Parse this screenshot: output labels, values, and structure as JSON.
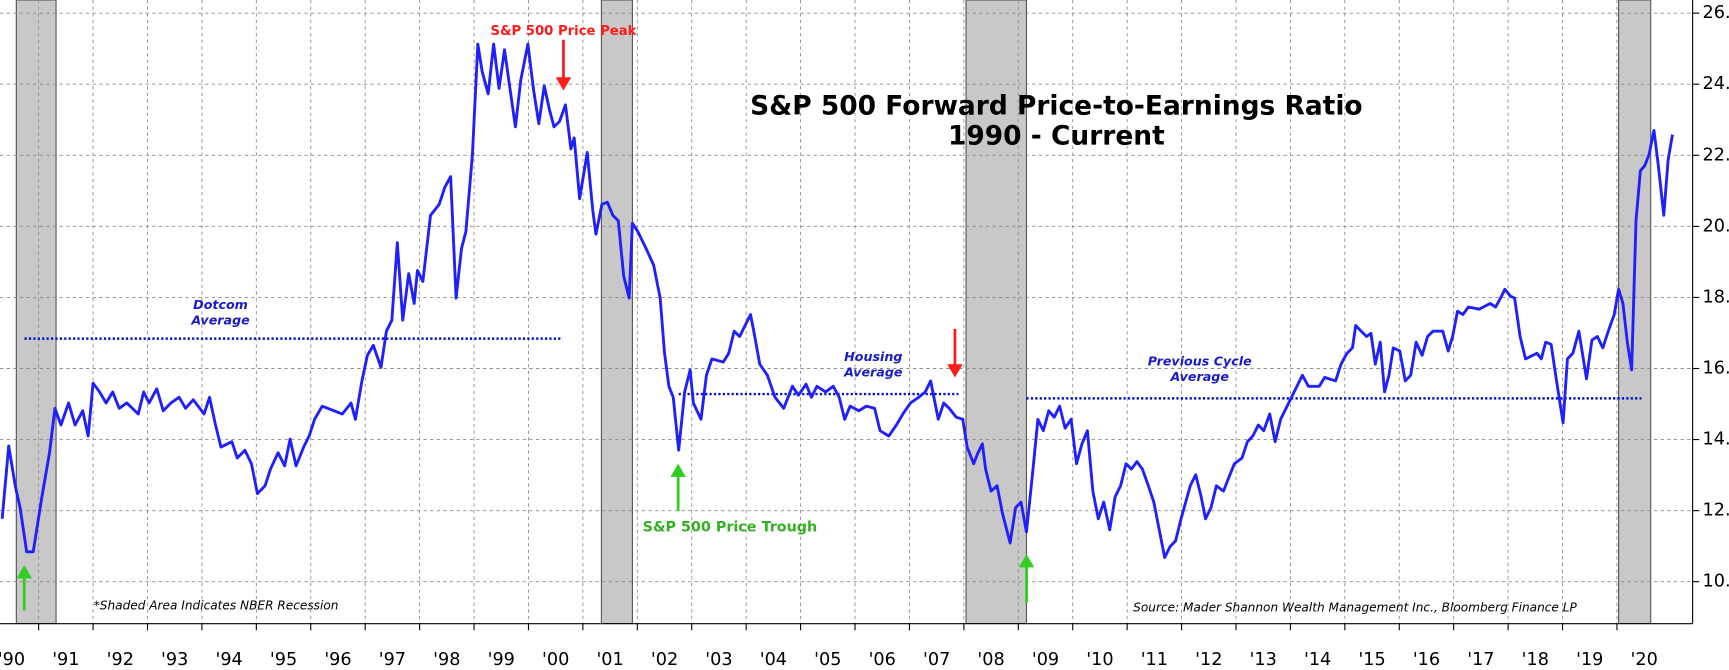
{
  "chart_data": {
    "type": "line",
    "title": [
      "S&P 500 Forward Price-to-Earnings Ratio",
      "1990 - Current"
    ],
    "color": "#1f1fff",
    "x": [
      1990.33,
      1990.45,
      1990.57,
      1990.66,
      1990.78,
      1990.9,
      1991.06,
      1991.2,
      1991.3,
      1991.41,
      1991.55,
      1991.67,
      1991.81,
      1991.91,
      1992.0,
      1992.12,
      1992.24,
      1992.36,
      1992.48,
      1992.62,
      1992.83,
      1992.93,
      1993.03,
      1993.17,
      1993.29,
      1993.43,
      1993.58,
      1993.7,
      1993.84,
      1994.04,
      1994.14,
      1994.25,
      1994.35,
      1994.55,
      1994.65,
      1994.79,
      1994.91,
      1995.02,
      1995.16,
      1995.26,
      1995.4,
      1995.52,
      1995.62,
      1995.73,
      1995.87,
      1995.97,
      1996.07,
      1996.21,
      1996.58,
      1996.74,
      1996.82,
      1996.94,
      1997.04,
      1997.15,
      1997.29,
      1997.39,
      1997.49,
      1997.59,
      1997.69,
      1997.8,
      1997.9,
      1997.96,
      1998.06,
      1998.2,
      1998.36,
      1998.46,
      1998.57,
      1998.67,
      1998.77,
      1998.85,
      1998.97,
      1999.07,
      1999.15,
      1999.26,
      1999.36,
      1999.46,
      1999.56,
      1999.66,
      1999.76,
      1999.86,
      1999.99,
      2000.09,
      2000.19,
      2000.29,
      2000.39,
      2000.47,
      2000.57,
      2000.68,
      2000.78,
      2000.84,
      2000.94,
      2001.08,
      2001.18,
      2001.24,
      2001.35,
      2001.45,
      2001.55,
      2001.65,
      2001.75,
      2001.85,
      2001.91,
      2002.01,
      2002.16,
      2002.3,
      2002.42,
      2002.5,
      2002.58,
      2002.66,
      2002.76,
      2002.87,
      2002.97,
      2003.03,
      2003.17,
      2003.27,
      2003.37,
      2003.58,
      2003.68,
      2003.78,
      2003.88,
      2003.98,
      2004.08,
      2004.14,
      2004.25,
      2004.39,
      2004.53,
      2004.69,
      2004.85,
      2004.96,
      2005.1,
      2005.2,
      2005.3,
      2005.46,
      2005.6,
      2005.71,
      2005.81,
      2005.91,
      2006.07,
      2006.21,
      2006.36,
      2006.46,
      2006.62,
      2006.76,
      2006.88,
      2007.02,
      2007.17,
      2007.29,
      2007.39,
      2007.53,
      2007.63,
      2007.73,
      2007.86,
      2007.98,
      2008.06,
      2008.18,
      2008.26,
      2008.34,
      2008.4,
      2008.5,
      2008.61,
      2008.71,
      2008.85,
      2008.95,
      2009.05,
      2009.15,
      2009.26,
      2009.36,
      2009.46,
      2009.56,
      2009.66,
      2009.76,
      2009.86,
      2009.97,
      2010.07,
      2010.17,
      2010.27,
      2010.37,
      2010.47,
      2010.57,
      2010.68,
      2010.78,
      2010.88,
      2010.98,
      2011.08,
      2011.18,
      2011.28,
      2011.39,
      2011.49,
      2011.59,
      2011.69,
      2011.79,
      2011.89,
      2011.99,
      2012.16,
      2012.26,
      2012.36,
      2012.44,
      2012.54,
      2012.64,
      2012.77,
      2012.85,
      2012.97,
      2013.11,
      2013.21,
      2013.31,
      2013.41,
      2013.51,
      2013.62,
      2013.72,
      2013.82,
      2013.92,
      2014.02,
      2014.12,
      2014.22,
      2014.33,
      2014.53,
      2014.63,
      2014.83,
      2014.93,
      2015.04,
      2015.14,
      2015.2,
      2015.3,
      2015.4,
      2015.48,
      2015.56,
      2015.65,
      2015.73,
      2015.81,
      2015.89,
      2016.01,
      2016.11,
      2016.21,
      2016.31,
      2016.42,
      2016.52,
      2016.62,
      2016.8,
      2016.9,
      2016.98,
      2017.07,
      2017.17,
      2017.27,
      2017.47,
      2017.67,
      2017.77,
      2017.88,
      2017.94,
      2018.04,
      2018.12,
      2018.22,
      2018.32,
      2018.53,
      2018.61,
      2018.69,
      2018.79,
      2018.89,
      2019.01,
      2019.09,
      2019.19,
      2019.3,
      2019.44,
      2019.54,
      2019.64,
      2019.74,
      2019.84,
      2019.95,
      2020.03,
      2020.11,
      2020.19,
      2020.27,
      2020.35,
      2020.43,
      2020.51,
      2020.59,
      2020.68,
      2020.76,
      2020.86,
      2020.94,
      2021.02
    ],
    "values": [
      11.77,
      13.82,
      12.7,
      12.08,
      10.84,
      10.84,
      12.39,
      13.63,
      14.88,
      14.41,
      15.03,
      14.41,
      14.81,
      14.1,
      15.59,
      15.34,
      15.03,
      15.34,
      14.88,
      15.03,
      14.72,
      15.34,
      15.03,
      15.43,
      14.81,
      15.03,
      15.19,
      14.88,
      15.12,
      14.72,
      15.19,
      14.41,
      13.79,
      13.94,
      13.48,
      13.7,
      13.32,
      12.48,
      12.7,
      13.17,
      13.63,
      13.26,
      14.01,
      13.26,
      13.79,
      14.1,
      14.57,
      14.94,
      14.72,
      15.03,
      14.57,
      15.65,
      16.37,
      16.65,
      16.03,
      17.05,
      17.36,
      19.54,
      17.36,
      18.67,
      17.83,
      18.76,
      18.45,
      20.31,
      20.62,
      21.09,
      21.4,
      17.98,
      19.38,
      19.85,
      22.02,
      25.13,
      24.35,
      23.73,
      25.13,
      23.88,
      24.97,
      23.88,
      22.8,
      24.13,
      25.13,
      23.88,
      22.89,
      23.95,
      23.26,
      22.8,
      22.95,
      23.42,
      22.18,
      22.49,
      20.78,
      22.08,
      20.47,
      19.78,
      20.62,
      20.68,
      20.31,
      20.16,
      18.6,
      17.98,
      20.09,
      19.85,
      19.38,
      18.91,
      17.98,
      16.43,
      15.5,
      15.19,
      13.7,
      15.34,
      15.96,
      15.03,
      14.57,
      15.81,
      16.27,
      16.18,
      16.43,
      17.05,
      16.9,
      17.21,
      17.52,
      17.05,
      16.12,
      15.81,
      15.19,
      14.88,
      15.5,
      15.25,
      15.56,
      15.19,
      15.5,
      15.34,
      15.5,
      15.19,
      14.57,
      14.94,
      14.81,
      14.94,
      14.88,
      14.25,
      14.1,
      14.41,
      14.72,
      15.03,
      15.19,
      15.34,
      15.65,
      14.57,
      15.03,
      14.88,
      14.63,
      14.57,
      13.79,
      13.32,
      13.63,
      13.88,
      13.17,
      12.55,
      12.7,
      11.92,
      11.09,
      12.08,
      12.24,
      11.4,
      13.01,
      14.57,
      14.25,
      14.81,
      14.63,
      14.94,
      14.32,
      14.57,
      13.32,
      13.88,
      14.25,
      12.55,
      11.77,
      12.24,
      11.46,
      12.39,
      12.7,
      13.32,
      13.17,
      13.38,
      13.17,
      12.7,
      12.24,
      11.46,
      10.68,
      10.99,
      11.15,
      11.77,
      12.7,
      13.01,
      12.39,
      11.77,
      12.08,
      12.7,
      12.55,
      12.86,
      13.32,
      13.48,
      13.94,
      14.1,
      14.41,
      14.25,
      14.72,
      13.94,
      14.57,
      14.88,
      15.19,
      15.5,
      15.81,
      15.5,
      15.5,
      15.75,
      15.65,
      16.12,
      16.43,
      16.58,
      17.21,
      17.05,
      16.9,
      16.99,
      16.12,
      16.74,
      15.34,
      15.81,
      16.58,
      16.49,
      15.65,
      15.81,
      16.74,
      16.37,
      16.9,
      17.05,
      17.05,
      16.49,
      16.9,
      17.61,
      17.52,
      17.73,
      17.67,
      17.83,
      17.73,
      18.04,
      18.23,
      18.04,
      17.98,
      16.9,
      16.27,
      16.43,
      16.27,
      16.74,
      16.68,
      15.65,
      14.47,
      16.27,
      16.43,
      17.05,
      15.71,
      16.8,
      16.9,
      16.58,
      17.05,
      17.52,
      18.23,
      17.83,
      16.74,
      15.96,
      20.16,
      21.56,
      21.71,
      22.02,
      22.7,
      21.71,
      20.31,
      21.87,
      22.58
    ],
    "xlim": [
      1990.29,
      2021.39
    ],
    "ylim": [
      8.82,
      26.37
    ],
    "xticks": [
      {
        "value": 1990,
        "label": "'90"
      },
      {
        "value": 1991,
        "label": "'91"
      },
      {
        "value": 1992,
        "label": "'92"
      },
      {
        "value": 1993,
        "label": "'93"
      },
      {
        "value": 1994,
        "label": "'94"
      },
      {
        "value": 1995,
        "label": "'95"
      },
      {
        "value": 1996,
        "label": "'96"
      },
      {
        "value": 1997,
        "label": "'97"
      },
      {
        "value": 1998,
        "label": "'98"
      },
      {
        "value": 1999,
        "label": "'99"
      },
      {
        "value": 2000,
        "label": "'00"
      },
      {
        "value": 2001,
        "label": "'01"
      },
      {
        "value": 2002,
        "label": "'02"
      },
      {
        "value": 2003,
        "label": "'03"
      },
      {
        "value": 2004,
        "label": "'04"
      },
      {
        "value": 2005,
        "label": "'05"
      },
      {
        "value": 2006,
        "label": "'06"
      },
      {
        "value": 2007,
        "label": "'07"
      },
      {
        "value": 2008,
        "label": "'08"
      },
      {
        "value": 2009,
        "label": "'09"
      },
      {
        "value": 2010,
        "label": "'10"
      },
      {
        "value": 2011,
        "label": "'11"
      },
      {
        "value": 2012,
        "label": "'12"
      },
      {
        "value": 2013,
        "label": "'13"
      },
      {
        "value": 2014,
        "label": "'14"
      },
      {
        "value": 2015,
        "label": "'15"
      },
      {
        "value": 2016,
        "label": "'16"
      },
      {
        "value": 2017,
        "label": "'17"
      },
      {
        "value": 2018,
        "label": "'18"
      },
      {
        "value": 2019,
        "label": "'19"
      },
      {
        "value": 2020,
        "label": "'20"
      }
    ],
    "yticks": [
      {
        "value": 10,
        "label": "10."
      },
      {
        "value": 12,
        "label": "12."
      },
      {
        "value": 14,
        "label": "14."
      },
      {
        "value": 16,
        "label": "16."
      },
      {
        "value": 18,
        "label": "18."
      },
      {
        "value": 20,
        "label": "20."
      },
      {
        "value": 22,
        "label": "22."
      },
      {
        "value": 24,
        "label": "24."
      },
      {
        "value": 26,
        "label": "26."
      }
    ],
    "grid": true,
    "recession_color": "#c8c8c8",
    "recessions": [
      [
        1990.59,
        1991.32
      ],
      [
        2001.34,
        2001.91
      ],
      [
        2008.04,
        2009.15
      ],
      [
        2020.03,
        2020.62
      ]
    ],
    "averages": [
      {
        "label": [
          "Dotcom",
          "Average"
        ],
        "value": 16.84,
        "start": 1990.74,
        "end": 2000.63
      },
      {
        "label": [
          "Housing",
          "Average"
        ],
        "value": 15.28,
        "start": 2002.76,
        "end": 2007.9
      },
      {
        "label": [
          "Previous Cycle",
          "Average"
        ],
        "value": 15.16,
        "start": 2009.15,
        "end": 2020.45
      }
    ],
    "annotations": [
      "S&P 500 Price Peak",
      "S&P 500 Price Trough",
      "*Shaded Area Indicates NBER Recession",
      "Source: Mader Shannon Wealth Management Inc., Bloomberg Finance LP"
    ]
  }
}
